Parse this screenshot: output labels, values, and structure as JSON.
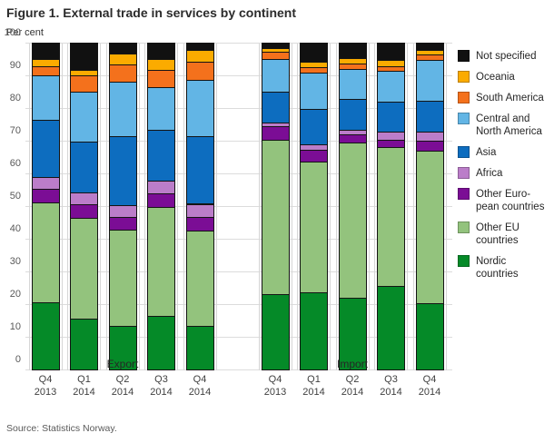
{
  "title": "Figure 1. External trade in services by continent",
  "source": "Source: Statistics Norway.",
  "colors": {
    "not_specified": "#111111",
    "oceania": "#fbab00",
    "south_america": "#f4711c",
    "central_north_america": "#62b5e5",
    "asia": "#0d6dbf",
    "africa": "#bb7dc9",
    "other_european": "#7b0d95",
    "other_eu": "#93c37d",
    "nordic": "#058a28",
    "gridline": "#dcdcdc",
    "axis_text": "#595959"
  },
  "chart_data": {
    "type": "bar",
    "subtype": "stacked-percent",
    "title": "Figure 1. External trade in services by continent",
    "ylabel": "Per cent",
    "ylim": [
      0,
      100
    ],
    "ytick_step": 10,
    "yticks": [
      "100",
      "90",
      "80",
      "70",
      "60",
      "50",
      "40",
      "30",
      "20",
      "10",
      "0"
    ],
    "grid": "horizontal",
    "legend_position": "right",
    "groups": [
      "Export",
      "Import"
    ],
    "categories": [
      {
        "quarter": "Q4",
        "year": "2013"
      },
      {
        "quarter": "Q1",
        "year": "2014"
      },
      {
        "quarter": "Q2",
        "year": "2014"
      },
      {
        "quarter": "Q3",
        "year": "2014"
      },
      {
        "quarter": "Q4",
        "year": "2014"
      }
    ],
    "stack_order": "bottom to top: Nordic countries, Other EU countries, Other European countries, Africa, Asia, Central and North America, South America, Oceania, Not specified",
    "series": [
      {
        "name": "Nordic countries",
        "legend_label": "Nordic\ncountries",
        "color": "#058a28",
        "export": [
          20.5,
          15.5,
          13.2,
          16.5,
          13.3
        ],
        "import": [
          23.0,
          23.5,
          22.0,
          25.5,
          20.2
        ]
      },
      {
        "name": "Other EU countries",
        "legend_label": "Other EU\ncountries",
        "color": "#93c37d",
        "export": [
          30.5,
          31.0,
          29.7,
          33.3,
          29.1
        ],
        "import": [
          47.2,
          40.2,
          47.5,
          42.6,
          46.7
        ]
      },
      {
        "name": "Other European countries",
        "legend_label": "Other Euro-\npean countries",
        "color": "#7b0d95",
        "export": [
          4.2,
          4.1,
          3.9,
          4.2,
          4.4
        ],
        "import": [
          4.2,
          3.4,
          2.5,
          2.3,
          3.0
        ]
      },
      {
        "name": "Africa",
        "legend_label": "Africa",
        "color": "#bb7dc9",
        "export": [
          3.7,
          3.7,
          3.6,
          3.7,
          3.9
        ],
        "import": [
          1.1,
          1.9,
          1.4,
          2.3,
          2.8
        ]
      },
      {
        "name": "Asia",
        "legend_label": "Asia",
        "color": "#0d6dbf",
        "export": [
          17.5,
          15.3,
          20.9,
          15.7,
          20.6
        ],
        "import": [
          9.5,
          10.6,
          9.5,
          9.2,
          9.5
        ]
      },
      {
        "name": "Central and North America",
        "legend_label": "Central and\nNorth America",
        "color": "#62b5e5",
        "export": [
          13.6,
          15.3,
          16.8,
          13.0,
          17.4
        ],
        "import": [
          9.9,
          11.2,
          9.0,
          9.6,
          12.5
        ]
      },
      {
        "name": "South America",
        "legend_label": "South America",
        "color": "#f4711c",
        "export": [
          2.7,
          5.1,
          5.2,
          5.4,
          5.6
        ],
        "import": [
          2.4,
          1.8,
          1.7,
          1.4,
          1.7
        ]
      },
      {
        "name": "Oceania",
        "legend_label": "Oceania",
        "color": "#fbab00",
        "export": [
          2.2,
          1.8,
          3.3,
          3.1,
          3.4
        ],
        "import": [
          1.1,
          1.7,
          1.6,
          1.8,
          1.3
        ]
      },
      {
        "name": "Not specified",
        "legend_label": "Not specified",
        "color": "#111111",
        "export": [
          5.1,
          8.2,
          3.4,
          5.1,
          2.3
        ],
        "import": [
          1.6,
          5.7,
          4.8,
          5.3,
          2.3
        ]
      }
    ]
  }
}
